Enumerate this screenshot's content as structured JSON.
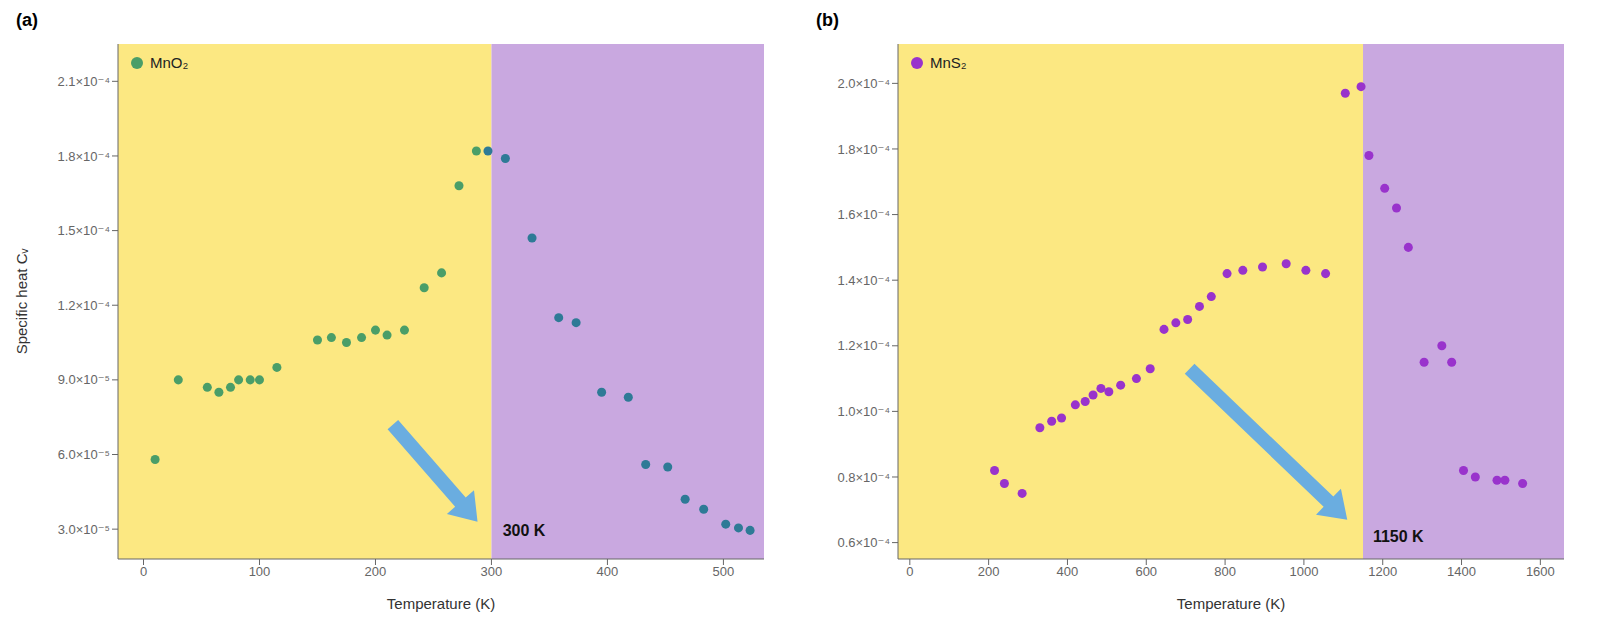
{
  "chart_data": [
    {
      "type": "scatter",
      "title": "(a)",
      "xlabel": "Temperature (K)",
      "ylabel": "Specific heat   Cᵥ",
      "legend": "upper left",
      "grid": false,
      "xlim": [
        -22,
        535
      ],
      "ylim": [
        1.8e-05,
        0.000225
      ],
      "xticks": [
        0,
        100,
        200,
        300,
        400,
        500
      ],
      "yticks": [
        {
          "value": 3e-05,
          "label": "3.0×10⁻⁵"
        },
        {
          "value": 6e-05,
          "label": "6.0×10⁻⁵"
        },
        {
          "value": 9e-05,
          "label": "9.0×10⁻⁵"
        },
        {
          "value": 0.00012,
          "label": "1.2×10⁻⁴"
        },
        {
          "value": 0.00015,
          "label": "1.5×10⁻⁴"
        },
        {
          "value": 0.00018,
          "label": "1.8×10⁻⁴"
        },
        {
          "value": 0.00021,
          "label": "2.1×10⁻⁴"
        }
      ],
      "bands": [
        {
          "x0": -22,
          "x1": 300,
          "color": "#fce882"
        },
        {
          "x0": 300,
          "x1": 535,
          "color": "#c9a8e0"
        }
      ],
      "series": [
        {
          "name": "MnO₂",
          "color": "#4a9e68",
          "x": [
            10,
            30,
            55,
            65,
            75,
            82,
            92,
            100,
            115,
            150,
            162,
            175,
            188,
            200,
            210,
            225,
            242,
            257,
            272,
            287
          ],
          "values": [
            5.8e-05,
            9e-05,
            8.7e-05,
            8.5e-05,
            8.7e-05,
            9e-05,
            9e-05,
            9e-05,
            9.5e-05,
            0.000106,
            0.000107,
            0.000105,
            0.000107,
            0.00011,
            0.000108,
            0.00011,
            0.000127,
            0.000133,
            0.000168,
            0.000182
          ]
        },
        {
          "color": "#2e7a96",
          "x": [
            297,
            312,
            335,
            358,
            373,
            395,
            418,
            433,
            452,
            467,
            483,
            502,
            513,
            523
          ],
          "values": [
            0.000182,
            0.000179,
            0.000147,
            0.000115,
            0.000113,
            8.5e-05,
            8.3e-05,
            5.6e-05,
            5.5e-05,
            4.2e-05,
            3.8e-05,
            3.2e-05,
            3.05e-05,
            2.95e-05
          ]
        }
      ],
      "annotations": [
        {
          "text": "300 K",
          "x": 308,
          "y": 2.95e-05
        }
      ],
      "arrows": [
        {
          "x0": 215,
          "y0": 7.2e-05,
          "x1": 288,
          "y1": 3.3e-05,
          "color": "#6aade0"
        }
      ]
    },
    {
      "type": "scatter",
      "title": "(b)",
      "xlabel": "Temperature (K)",
      "legend": "upper left",
      "grid": false,
      "xlim": [
        -30,
        1660
      ],
      "ylim": [
        5.5e-05,
        0.000212
      ],
      "xticks": [
        0,
        200,
        400,
        600,
        800,
        1000,
        1200,
        1400,
        1600
      ],
      "yticks": [
        {
          "value": 6e-05,
          "label": "0.6×10⁻⁴"
        },
        {
          "value": 8e-05,
          "label": "0.8×10⁻⁴"
        },
        {
          "value": 0.0001,
          "label": "1.0×10⁻⁴"
        },
        {
          "value": 0.00012,
          "label": "1.2×10⁻⁴"
        },
        {
          "value": 0.00014,
          "label": "1.4×10⁻⁴"
        },
        {
          "value": 0.00016,
          "label": "1.6×10⁻⁴"
        },
        {
          "value": 0.00018,
          "label": "1.8×10⁻⁴"
        },
        {
          "value": 0.0002,
          "label": "2.0×10⁻⁴"
        }
      ],
      "bands": [
        {
          "x0": -30,
          "x1": 1150,
          "color": "#fce882"
        },
        {
          "x0": 1150,
          "x1": 1660,
          "color": "#c9a8e0"
        }
      ],
      "series": [
        {
          "name": "MnS₂",
          "color": "#9933cc",
          "x": [
            215,
            240,
            285,
            330,
            360,
            385,
            420,
            445,
            465,
            485,
            505,
            535,
            575,
            610,
            645,
            675,
            705,
            735,
            765,
            805,
            845,
            895,
            955,
            1005,
            1055,
            1105,
            1145
          ],
          "values": [
            8.2e-05,
            7.8e-05,
            7.5e-05,
            9.5e-05,
            9.7e-05,
            9.8e-05,
            0.000102,
            0.000103,
            0.000105,
            0.000107,
            0.000106,
            0.000108,
            0.00011,
            0.000113,
            0.000125,
            0.000127,
            0.000128,
            0.000132,
            0.000135,
            0.000142,
            0.000143,
            0.000144,
            0.000145,
            0.000143,
            0.000142,
            0.000197,
            0.000199
          ]
        },
        {
          "color": "#9933cc",
          "x": [
            1165,
            1205,
            1235,
            1265,
            1305,
            1350,
            1375,
            1405,
            1435,
            1490,
            1510,
            1555
          ],
          "values": [
            0.000178,
            0.000168,
            0.000162,
            0.00015,
            0.000115,
            0.00012,
            0.000115,
            8.2e-05,
            8e-05,
            7.9e-05,
            7.9e-05,
            7.8e-05
          ]
        }
      ],
      "annotations": [
        {
          "text": "1150 K",
          "x": 1170,
          "y": 6.2e-05
        }
      ],
      "arrows": [
        {
          "x0": 710,
          "y0": 0.000113,
          "x1": 1110,
          "y1": 6.7e-05,
          "color": "#6aade0"
        }
      ]
    }
  ]
}
